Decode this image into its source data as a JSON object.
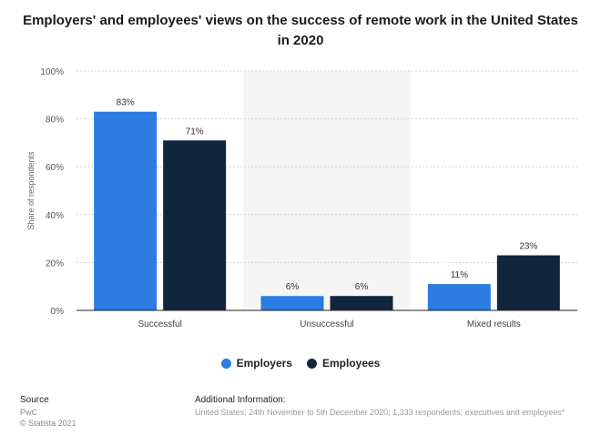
{
  "title": "Employers' and employees' views on the success of remote work in the United States in 2020",
  "colors": {
    "employers": "#2b7be0",
    "employees": "#11263e",
    "highlight_band": "#f5f5f5"
  },
  "chart_data": {
    "type": "bar",
    "categories": [
      "Successful",
      "Unsuccessful",
      "Mixed results"
    ],
    "series": [
      {
        "name": "Employers",
        "values": [
          83,
          6,
          11
        ]
      },
      {
        "name": "Employees",
        "values": [
          71,
          6,
          23
        ]
      }
    ],
    "value_labels": [
      [
        "83%",
        "6%",
        "11%"
      ],
      [
        "71%",
        "6%",
        "23%"
      ]
    ],
    "ylabel": "Share of respondents",
    "ylim": [
      0,
      100
    ],
    "yticks": [
      0,
      20,
      40,
      60,
      80,
      100
    ],
    "ytick_labels": [
      "0%",
      "20%",
      "40%",
      "60%",
      "80%",
      "100%"
    ],
    "highlighted_category": "Unsuccessful",
    "grid": true,
    "legend_position": "bottom"
  },
  "legend": [
    {
      "label": "Employers",
      "color": "#2b7be0"
    },
    {
      "label": "Employees",
      "color": "#11263e"
    }
  ],
  "footer": {
    "source_heading": "Source",
    "source_name": "PwC",
    "copyright": "© Statista 2021",
    "info_heading": "Additional Information:",
    "info_text": "United States; 24th November to 5th December 2020; 1,333 respondents; executives and employees*"
  }
}
